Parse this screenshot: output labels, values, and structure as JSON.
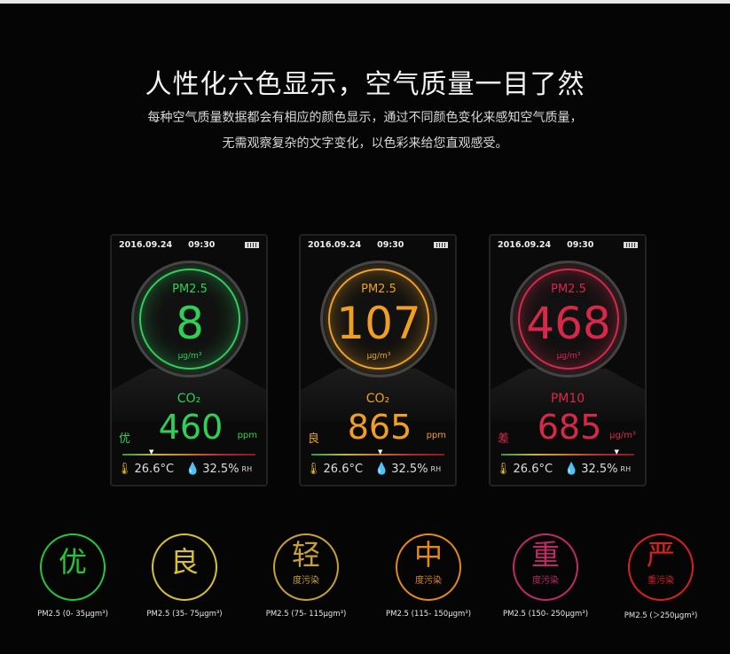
{
  "header": {
    "title": "人性化六色显示，空气质量一目了然",
    "line1": "每种空气质量数据都会有相应的颜色显示，通过不同颜色变化来感知空气质量，",
    "line2": "无需观察复杂的文字变化，以色彩来给您直观感受。"
  },
  "phones": [
    {
      "date": "2016.09.24",
      "time": "09:30",
      "pm_label": "PM2.5",
      "pm_value": "8",
      "pm_unit": "μg/m³",
      "sub_label": "CO₂",
      "level": "优",
      "sub_value": "460",
      "sub_unit": "ppm",
      "temp": "26.6°C",
      "hum": "32.5%",
      "hum_unit": "RH",
      "color": "#2ed05a",
      "indicator_percent": 20
    },
    {
      "date": "2016.09.24",
      "time": "09:30",
      "pm_label": "PM2.5",
      "pm_value": "107",
      "pm_unit": "μg/m³",
      "sub_label": "CO₂",
      "level": "良",
      "sub_value": "865",
      "sub_unit": "ppm",
      "temp": "26.6°C",
      "hum": "32.5%",
      "hum_unit": "RH",
      "color": "#f0a020",
      "indicator_percent": 50
    },
    {
      "date": "2016.09.24",
      "time": "09:30",
      "pm_label": "PM2.5",
      "pm_value": "468",
      "pm_unit": "μg/m³",
      "sub_label": "PM10",
      "level": "差",
      "sub_value": "685",
      "sub_unit": "μg/m³",
      "temp": "26.6°C",
      "hum": "32.5%",
      "hum_unit": "RH",
      "color": "#d8284a",
      "indicator_percent": 85
    }
  ],
  "levels": [
    {
      "char": "优",
      "sub": "",
      "range": "PM2.5 (0- 35μgm³)",
      "color": "#22c83a"
    },
    {
      "char": "良",
      "sub": "",
      "range": "PM2.5 (35- 75μgm³)",
      "color": "#d8c030"
    },
    {
      "char": "轻",
      "sub": "度污染",
      "range": "PM2.5 (75- 115μgm³)",
      "color": "#c8a030"
    },
    {
      "char": "中",
      "sub": "度污染",
      "range": "PM2.5 (115- 150μgm³)",
      "color": "#e08a18"
    },
    {
      "char": "重",
      "sub": "度污染",
      "range": "PM2.5 (150- 250μgm³)",
      "color": "#c02868"
    },
    {
      "char": "严",
      "sub": "重污染",
      "range": "PM2.5 (＞250μgm³)",
      "color": "#d82020"
    }
  ]
}
